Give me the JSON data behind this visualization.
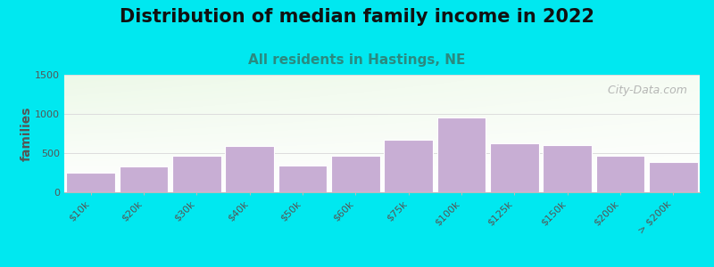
{
  "title": "Distribution of median family income in 2022",
  "subtitle": "All residents in Hastings, NE",
  "ylabel": "families",
  "categories": [
    "$10k",
    "$20k",
    "$30k",
    "$40k",
    "$50k",
    "$60k",
    "$75k",
    "$100k",
    "$125k",
    "$150k",
    "$200k",
    "> $200k"
  ],
  "values": [
    255,
    325,
    465,
    590,
    340,
    470,
    670,
    960,
    625,
    605,
    465,
    385
  ],
  "bar_color": "#c8aed4",
  "bar_edge_color": "#ffffff",
  "ylim": [
    0,
    1500
  ],
  "yticks": [
    0,
    500,
    1000,
    1500
  ],
  "background_outer": "#00e8f0",
  "background_plot_topleft": "#dff0d8",
  "background_plot_right": "#f5f5f5",
  "background_plot_bottom": "#ffffff",
  "title_fontsize": 15,
  "subtitle_fontsize": 11,
  "subtitle_color": "#2a8a80",
  "ylabel_color": "#555555",
  "ylabel_fontsize": 10,
  "tick_color": "#555555",
  "tick_fontsize": 8,
  "watermark_text": "  City-Data.com",
  "watermark_color": "#aaaaaa",
  "grid_color": "#dddddd"
}
